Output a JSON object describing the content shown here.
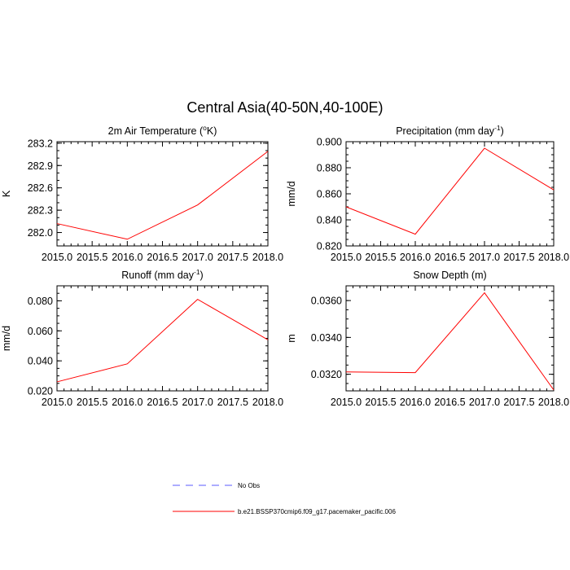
{
  "figure": {
    "title": "Central Asia(40-50N,40-100E)"
  },
  "legend": [
    {
      "label": "No Obs",
      "color": "#5b5bff",
      "dash": true
    },
    {
      "label": "b.e21.BSSP370cmip6.f09_g17.pacemaker_pacific.006",
      "color": "#ff0000",
      "dash": false
    }
  ],
  "chart_data": [
    {
      "type": "line",
      "title": "2m Air Temperature (",
      "title_sup": "o",
      "title_end": "K)",
      "ylabel": "K",
      "xlim": [
        2015.0,
        2018.0
      ],
      "ylim": [
        281.82,
        283.22
      ],
      "xticks": [
        2015.0,
        2015.5,
        2016.0,
        2016.5,
        2017.0,
        2017.5,
        2018.0
      ],
      "xtick_labels": [
        "2015.0",
        "2015.5",
        "2016.0",
        "2016.5",
        "2017.0",
        "2017.5",
        "2018.0"
      ],
      "yticks": [
        282.0,
        282.3,
        282.6,
        282.9,
        283.2
      ],
      "ytick_labels": [
        "282.0",
        "282.3",
        "282.6",
        "282.9",
        "283.2"
      ],
      "minor_y": 0.1,
      "series": [
        {
          "color": "#ff0000",
          "x": [
            2015,
            2016,
            2017,
            2018
          ],
          "y": [
            282.12,
            281.91,
            282.37,
            283.09
          ]
        }
      ]
    },
    {
      "type": "line",
      "title": "Precipitation (mm day",
      "title_sup": "-1",
      "title_end": ")",
      "ylabel": "mm/d",
      "xlim": [
        2015.0,
        2018.0
      ],
      "ylim": [
        0.82,
        0.9
      ],
      "xticks": [
        2015.0,
        2015.5,
        2016.0,
        2016.5,
        2017.0,
        2017.5,
        2018.0
      ],
      "xtick_labels": [
        "2015.0",
        "2015.5",
        "2016.0",
        "2016.5",
        "2017.0",
        "2017.5",
        "2018.0"
      ],
      "yticks": [
        0.82,
        0.84,
        0.86,
        0.88,
        0.9
      ],
      "ytick_labels": [
        "0.820",
        "0.840",
        "0.860",
        "0.880",
        "0.900"
      ],
      "minor_y": 0.005,
      "series": [
        {
          "color": "#ff0000",
          "x": [
            2015,
            2016,
            2017,
            2018
          ],
          "y": [
            0.85,
            0.829,
            0.895,
            0.863
          ]
        }
      ]
    },
    {
      "type": "line",
      "title": "Runoff (mm day",
      "title_sup": "-1",
      "title_end": ")",
      "ylabel": "mm/d",
      "xlim": [
        2015.0,
        2018.0
      ],
      "ylim": [
        0.02,
        0.09
      ],
      "xticks": [
        2015.0,
        2015.5,
        2016.0,
        2016.5,
        2017.0,
        2017.5,
        2018.0
      ],
      "xtick_labels": [
        "2015.0",
        "2015.5",
        "2016.0",
        "2016.5",
        "2017.0",
        "2017.5",
        "2018.0"
      ],
      "yticks": [
        0.02,
        0.04,
        0.06,
        0.08
      ],
      "ytick_labels": [
        "0.020",
        "0.040",
        "0.060",
        "0.080"
      ],
      "minor_y": 0.005,
      "series": [
        {
          "color": "#ff0000",
          "x": [
            2015,
            2016,
            2017,
            2018
          ],
          "y": [
            0.026,
            0.038,
            0.081,
            0.054
          ]
        }
      ]
    },
    {
      "type": "line",
      "title": "Snow Depth (m)",
      "title_sup": "",
      "title_end": "",
      "ylabel": "m",
      "xlim": [
        2015.0,
        2018.0
      ],
      "ylim": [
        0.0311,
        0.0368
      ],
      "xticks": [
        2015.0,
        2015.5,
        2016.0,
        2016.5,
        2017.0,
        2017.5,
        2018.0
      ],
      "xtick_labels": [
        "2015.0",
        "2015.5",
        "2016.0",
        "2016.5",
        "2017.0",
        "2017.5",
        "2018.0"
      ],
      "yticks": [
        0.032,
        0.034,
        0.036
      ],
      "ytick_labels": [
        "0.0320",
        "0.0340",
        "0.0360"
      ],
      "minor_y": 0.0005,
      "series": [
        {
          "color": "#ff0000",
          "x": [
            2015,
            2016,
            2017,
            2018
          ],
          "y": [
            0.03213,
            0.03209,
            0.03642,
            0.03115
          ]
        }
      ]
    }
  ]
}
